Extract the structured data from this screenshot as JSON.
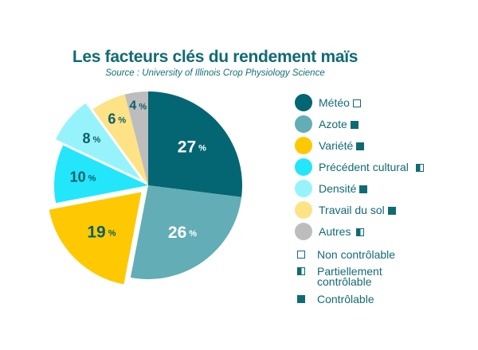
{
  "chart_data": {
    "type": "pie",
    "title": "Les facteurs clés du rendement maïs",
    "subtitle": "Source : University of Illinois Crop Physiology Science",
    "unit": "%",
    "start": "12 o'clock, clockwise",
    "slices": [
      {
        "name": "Météo",
        "value": 27,
        "label": "27",
        "color": "#036672",
        "label_color": "#ffffff",
        "exploded": false,
        "control": "non"
      },
      {
        "name": "Azote",
        "value": 26,
        "label": "26",
        "color": "#62adb6",
        "label_color": "#ffffff",
        "exploded": false,
        "control": "full"
      },
      {
        "name": "Variété",
        "value": 19,
        "label": "19",
        "color": "#fec900",
        "label_color": "#0d5e68",
        "exploded": true,
        "control": "full"
      },
      {
        "name": "Précédent cultural",
        "value": 10,
        "label": "10",
        "color": "#23e6fb",
        "label_color": "#0d5e68",
        "exploded": false,
        "control": "part"
      },
      {
        "name": "Densité",
        "value": 8,
        "label": "8",
        "color": "#96f3fc",
        "label_color": "#0d5e68",
        "exploded": true,
        "control": "full"
      },
      {
        "name": "Travail du sol",
        "value": 6,
        "label": "6",
        "color": "#fde286",
        "label_color": "#0d5e68",
        "exploded": false,
        "control": "full"
      },
      {
        "name": "Autres",
        "value": 4,
        "label": "4",
        "color": "#bdbdbd",
        "label_color": "#0d5e68",
        "exploded": false,
        "control": "part"
      }
    ],
    "legend_placement": "right"
  },
  "key": [
    {
      "symbol": "non",
      "label": "Non contrôlable"
    },
    {
      "symbol": "part",
      "label": "Partiellement contrôlable",
      "lines": [
        "Partiellement",
        "contrôlable"
      ]
    },
    {
      "symbol": "full",
      "label": "Contrôlable"
    }
  ]
}
